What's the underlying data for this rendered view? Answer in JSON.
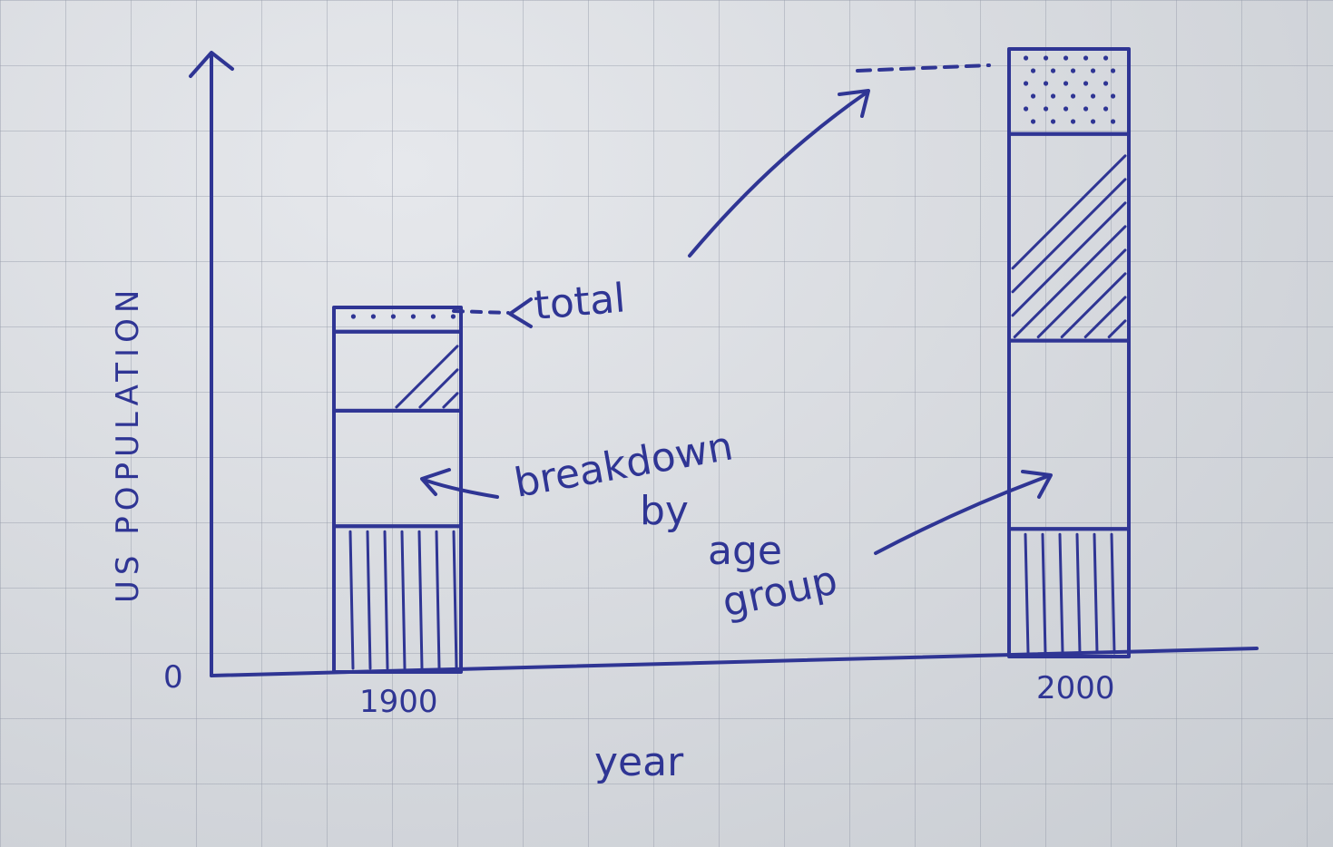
{
  "chart_data": {
    "type": "bar",
    "stacked": true,
    "title": "",
    "xlabel": "year",
    "ylabel": "US POPULATION",
    "categories": [
      "1900",
      "2000"
    ],
    "y_tick_labels": [
      "0"
    ],
    "series": [
      {
        "pattern": "vertical-lines",
        "values": [
          0.24,
          0.21
        ]
      },
      {
        "pattern": "blank",
        "values": [
          0.19,
          0.31
        ]
      },
      {
        "pattern": "diagonal-lines",
        "values": [
          0.13,
          0.34
        ]
      },
      {
        "pattern": "dots",
        "values": [
          0.04,
          0.14
        ]
      }
    ],
    "annotations": {
      "total": "total",
      "breakdown": [
        "breakdown",
        "by",
        "age",
        "group"
      ]
    },
    "colors": {
      "ink": "#2f3594",
      "paper": "#d9dce0"
    }
  }
}
